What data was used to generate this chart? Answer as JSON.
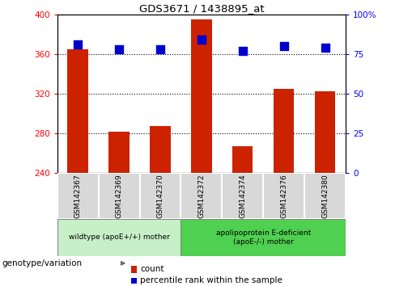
{
  "title": "GDS3671 / 1438895_at",
  "samples": [
    "GSM142367",
    "GSM142369",
    "GSM142370",
    "GSM142372",
    "GSM142374",
    "GSM142376",
    "GSM142380"
  ],
  "counts": [
    365,
    282,
    287,
    395,
    267,
    325,
    322
  ],
  "percentiles": [
    81,
    78,
    78,
    84,
    77,
    80,
    79
  ],
  "ymin": 240,
  "ymax": 400,
  "yticks_left": [
    240,
    280,
    320,
    360,
    400
  ],
  "yticks_right": [
    0,
    25,
    50,
    75,
    100
  ],
  "bar_color": "#cc2200",
  "dot_color": "#0000cc",
  "group1_label": "wildtype (apoE+/+) mother",
  "group2_label": "apolipoprotein E-deficient\n(apoE-/-) mother",
  "group1_color": "#c8f0c8",
  "group2_color": "#50d050",
  "genotype_label": "genotype/variation",
  "legend_count": "count",
  "legend_pct": "percentile rank within the sample",
  "bar_width": 0.5,
  "dot_size": 45,
  "sample_box_color": "#d8d8d8",
  "grid_color": "#000000"
}
